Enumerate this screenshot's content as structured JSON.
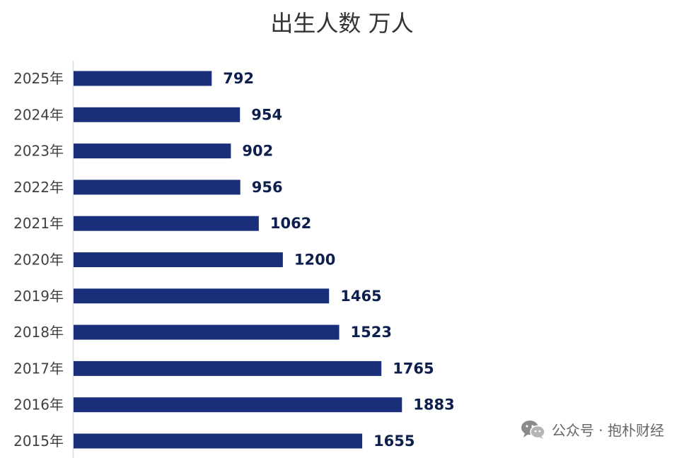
{
  "chart_data": {
    "type": "bar",
    "orientation": "horizontal",
    "title": "出生人数 万人",
    "categories": [
      "2025年",
      "2024年",
      "2023年",
      "2022年",
      "2021年",
      "2020年",
      "2019年",
      "2018年",
      "2017年",
      "2016年",
      "2015年"
    ],
    "values": [
      792,
      954,
      902,
      956,
      1062,
      1200,
      1465,
      1523,
      1765,
      1883,
      1655
    ],
    "data_labels": [
      "792",
      "954",
      "902",
      "956",
      "1062",
      "1200",
      "1465",
      "1523",
      "1765",
      "1883",
      "1655"
    ],
    "xlim": [
      0,
      3500
    ],
    "grid": false,
    "bar_color": "#1a2f7a",
    "label_color": "#0d1f4d"
  },
  "watermark": {
    "icon": "wechat-icon",
    "text": "公众号 · 抱朴财经"
  }
}
